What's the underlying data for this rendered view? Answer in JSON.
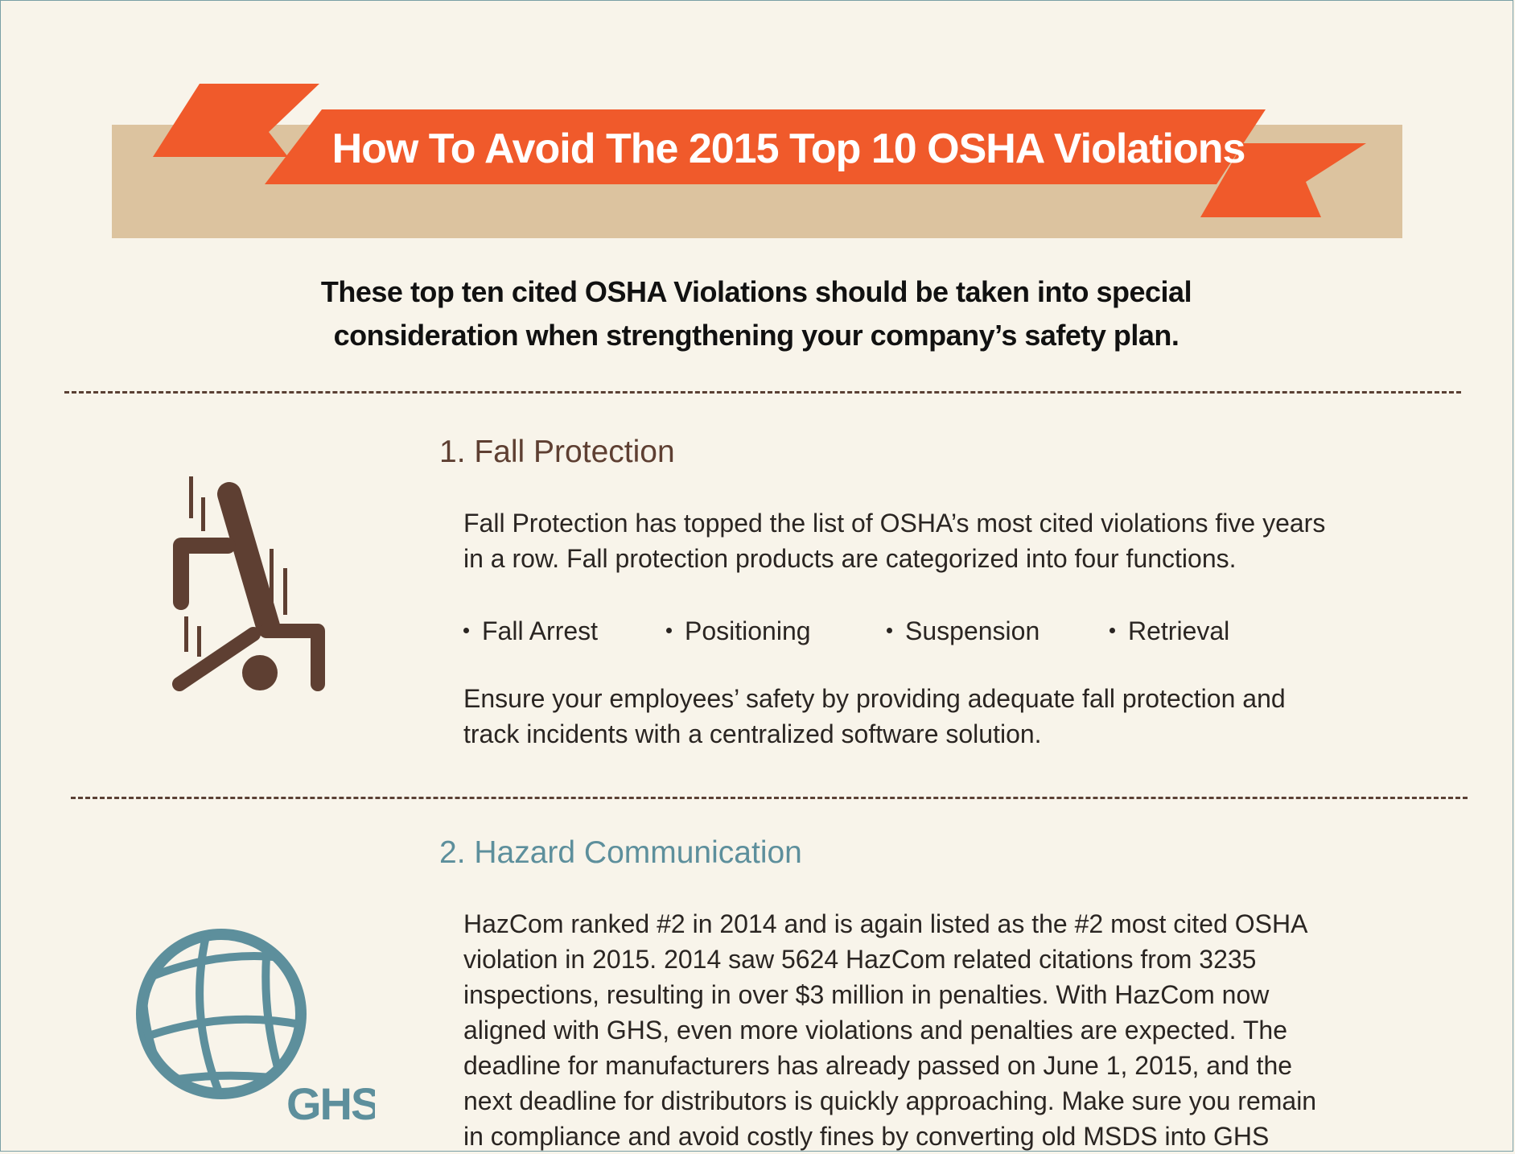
{
  "banner": {
    "title": "How To Avoid The 2015 Top 10 OSHA Violations"
  },
  "intro": {
    "line1": "These top ten cited OSHA Violations should be taken into special",
    "line2": "consideration when strengthening your company’s safety plan."
  },
  "colors": {
    "ribbon": "#f05a2b",
    "band": "#dcc39f",
    "brown": "#5e3f32",
    "teal": "#5d8f9c",
    "background": "#f8f4ea"
  },
  "sections": [
    {
      "title": "1. Fall Protection",
      "icon": "falling-person-icon",
      "para1": {
        "line1": "Fall Protection has topped the list of OSHA’s most cited violations five years",
        "line2": "in a row. Fall protection products are categorized into four functions."
      },
      "bullets": [
        "Fall Arrest",
        "Positioning",
        "Suspension",
        "Retrieval"
      ],
      "para2": {
        "line1": "Ensure your employees’ safety by providing adequate fall protection and",
        "line2": "track incidents with a centralized software solution."
      }
    },
    {
      "title": "2. Hazard Communication",
      "icon": "ghs-globe-icon",
      "icon_label": "GHS",
      "para1": {
        "line1": "HazCom ranked #2 in 2014 and is again listed as the #2 most cited OSHA",
        "line2": "violation in 2015. 2014 saw 5624 HazCom related citations from 3235",
        "line3": "inspections, resulting in over $3 million in penalties. With HazCom now",
        "line4": "aligned with GHS, even more violations and penalties are expected. The",
        "line5": "deadline for manufacturers has already passed on June 1, 2015, and the",
        "line6": "next deadline for distributors is quickly approaching. Make sure you remain",
        "line7": "in compliance and avoid costly fines by converting old MSDS into GHS"
      }
    }
  ]
}
